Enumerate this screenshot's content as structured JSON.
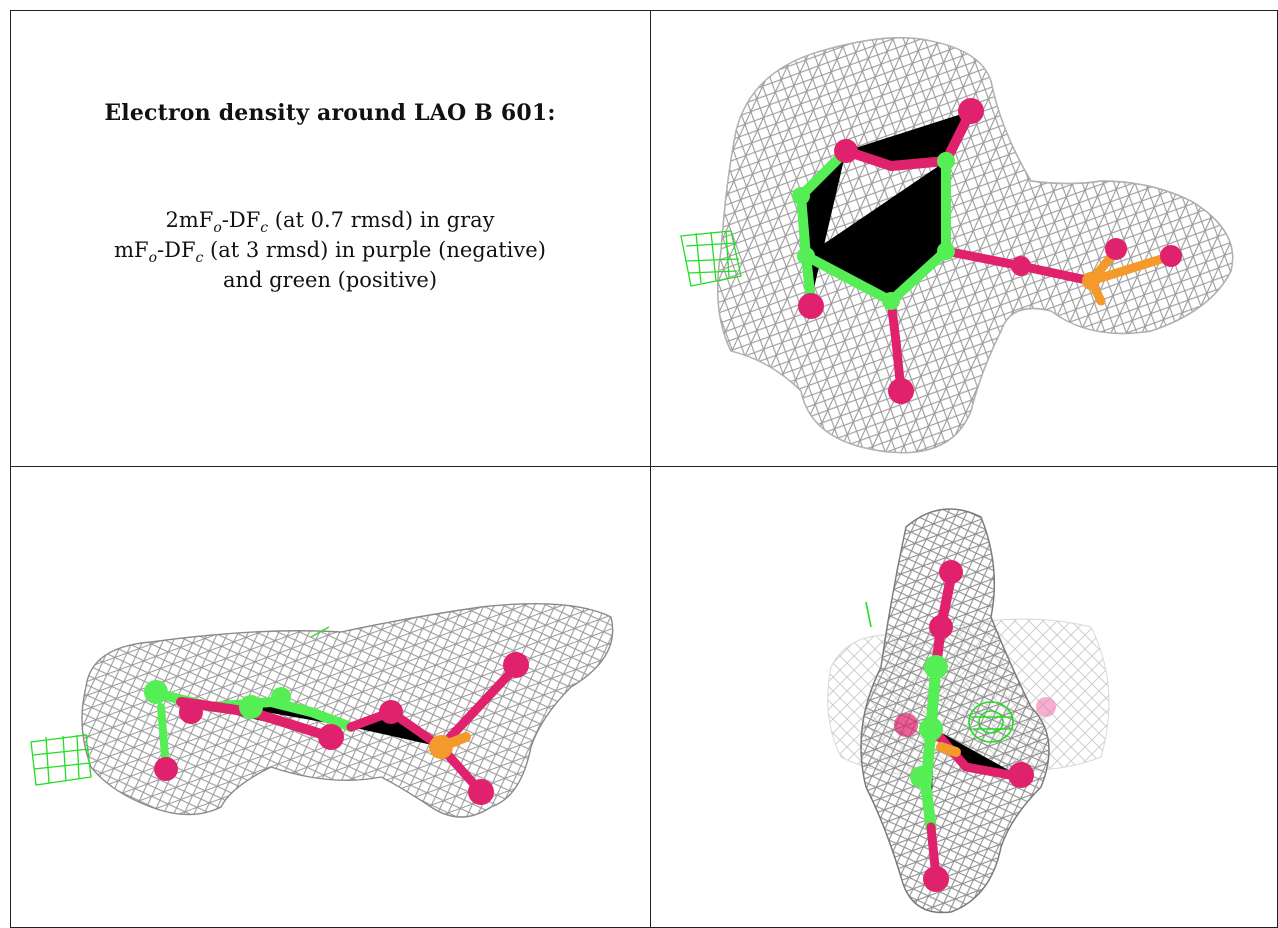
{
  "caption": {
    "title": "Electron density around LAO B 601:",
    "line1": {
      "a": "2mF",
      "sub1": "o",
      "b": "-DF",
      "sub2": "c",
      "c": " (at 0.7 rmsd) in gray"
    },
    "line2": {
      "a": "mF",
      "sub1": "o",
      "b": "-DF",
      "sub2": "c",
      "c": " (at 3 rmsd) in purple (negative)"
    },
    "line3": "and green (positive)"
  },
  "colors": {
    "mesh_gray": "#9a9a9a",
    "mesh_green": "#22dd22",
    "carbon_green": "#55ee55",
    "oxygen_pink": "#e0226e",
    "phosphorus_orange": "#f39a2a",
    "border": "#222222"
  },
  "panels": [
    {
      "name": "view-top-right"
    },
    {
      "name": "view-bottom-left"
    },
    {
      "name": "view-bottom-right"
    }
  ]
}
